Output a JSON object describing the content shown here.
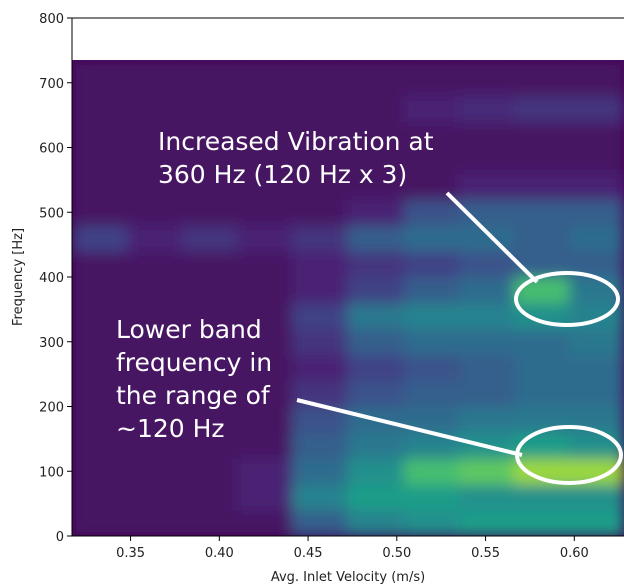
{
  "chart_data": {
    "type": "heatmap",
    "xlabel": "Avg. Inlet Velocity (m/s)",
    "ylabel": "Frequency [Hz]",
    "xlim": [
      0.317,
      0.628
    ],
    "ylim": [
      0,
      800
    ],
    "xticks": [
      0.35,
      {
        "value": 0.4,
        "label": "0.40"
      },
      0.45,
      {
        "value": 0.5,
        "label": "0.50"
      },
      0.55,
      {
        "value": 0.6,
        "label": "0.60"
      }
    ],
    "yticks": [
      0,
      100,
      200,
      300,
      400,
      500,
      600,
      700,
      800
    ],
    "xbins": [
      0.317,
      0.348,
      0.379,
      0.41,
      0.441,
      0.472,
      0.504,
      0.535,
      0.566,
      0.597,
      0.628
    ],
    "ybins": [
      0,
      40,
      80,
      120,
      160,
      200,
      240,
      280,
      320,
      360,
      400,
      440,
      480,
      520,
      560,
      600,
      640,
      680,
      735
    ],
    "z": [
      [
        0.05,
        0.05,
        0.05,
        0.05,
        0.3,
        0.45,
        0.5,
        0.55,
        0.55,
        0.55
      ],
      [
        0.05,
        0.05,
        0.05,
        0.1,
        0.45,
        0.55,
        0.55,
        0.5,
        0.5,
        0.5
      ],
      [
        0.05,
        0.05,
        0.05,
        0.1,
        0.35,
        0.5,
        0.7,
        0.75,
        0.85,
        0.85
      ],
      [
        0.05,
        0.05,
        0.05,
        0.05,
        0.3,
        0.4,
        0.45,
        0.5,
        0.55,
        0.5
      ],
      [
        0.05,
        0.05,
        0.05,
        0.05,
        0.25,
        0.35,
        0.35,
        0.4,
        0.4,
        0.4
      ],
      [
        0.05,
        0.05,
        0.05,
        0.05,
        0.15,
        0.25,
        0.3,
        0.3,
        0.35,
        0.35
      ],
      [
        0.05,
        0.05,
        0.05,
        0.05,
        0.1,
        0.2,
        0.25,
        0.3,
        0.35,
        0.35
      ],
      [
        0.05,
        0.05,
        0.05,
        0.05,
        0.15,
        0.3,
        0.35,
        0.35,
        0.35,
        0.4
      ],
      [
        0.05,
        0.05,
        0.05,
        0.05,
        0.2,
        0.4,
        0.45,
        0.45,
        0.5,
        0.45
      ],
      [
        0.05,
        0.05,
        0.05,
        0.05,
        0.1,
        0.2,
        0.3,
        0.35,
        0.7,
        0.4
      ],
      [
        0.05,
        0.05,
        0.05,
        0.05,
        0.1,
        0.15,
        0.2,
        0.25,
        0.3,
        0.3
      ],
      [
        0.2,
        0.1,
        0.15,
        0.1,
        0.15,
        0.3,
        0.35,
        0.35,
        0.3,
        0.35
      ],
      [
        0.05,
        0.05,
        0.05,
        0.05,
        0.05,
        0.1,
        0.25,
        0.3,
        0.3,
        0.3
      ],
      [
        0.05,
        0.05,
        0.05,
        0.05,
        0.05,
        0.05,
        0.05,
        0.1,
        0.1,
        0.1
      ],
      [
        0.05,
        0.05,
        0.05,
        0.05,
        0.05,
        0.05,
        0.05,
        0.05,
        0.05,
        0.05
      ],
      [
        0.05,
        0.05,
        0.05,
        0.05,
        0.05,
        0.05,
        0.05,
        0.05,
        0.05,
        0.05
      ],
      [
        0.05,
        0.05,
        0.05,
        0.05,
        0.05,
        0.05,
        0.1,
        0.12,
        0.15,
        0.15
      ],
      [
        0.05,
        0.05,
        0.05,
        0.05,
        0.05,
        0.05,
        0.05,
        0.05,
        0.05,
        0.05
      ]
    ],
    "annotations": [
      {
        "lines": [
          "Increased Vibration at",
          "360 Hz (120 Hz x 3)"
        ]
      },
      {
        "lines": [
          "Lower band",
          "frequency in",
          "the range of",
          "~120 Hz"
        ]
      }
    ]
  }
}
